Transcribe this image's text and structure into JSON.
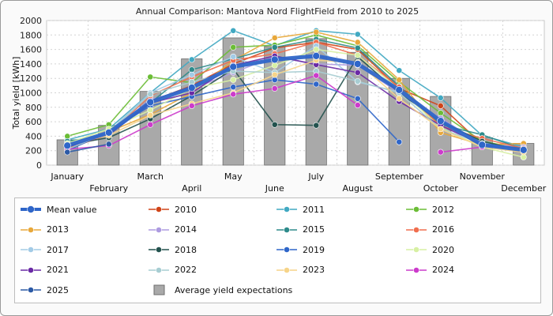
{
  "chart_data": {
    "type": "bar+line",
    "title": "Annual Comparison: Mantova Nord FlightField from 2010 to 2025",
    "ylabel": "Total yield [kWh]",
    "xlabel": "",
    "ylim": [
      0,
      2000
    ],
    "yticks": [
      0,
      200,
      400,
      600,
      800,
      1000,
      1200,
      1400,
      1600,
      1800,
      2000
    ],
    "grid": true,
    "legend_position": "bottom",
    "categories": [
      "January",
      "February",
      "March",
      "April",
      "May",
      "June",
      "July",
      "August",
      "September",
      "October",
      "November",
      "December"
    ],
    "bars": {
      "name": "Average yield expectations",
      "color": "#a9a9a9",
      "values": [
        350,
        550,
        1020,
        1470,
        1760,
        1640,
        1750,
        1560,
        1200,
        950,
        380,
        300
      ]
    },
    "series": [
      {
        "name": "Mean value",
        "color": "#2f66c9",
        "values": [
          270,
          450,
          870,
          1070,
          1360,
          1460,
          1510,
          1400,
          1040,
          610,
          280,
          210
        ]
      },
      {
        "name": "2010",
        "color": "#d04418",
        "values": [
          230,
          420,
          880,
          1100,
          1400,
          1620,
          1700,
          1600,
          1060,
          820,
          290,
          230
        ]
      },
      {
        "name": "2011",
        "color": "#41a9c2",
        "values": [
          350,
          500,
          1000,
          1460,
          1860,
          1650,
          1860,
          1810,
          1310,
          930,
          410,
          250
        ]
      },
      {
        "name": "2012",
        "color": "#6bbd36",
        "values": [
          400,
          560,
          1220,
          1140,
          1630,
          1660,
          1800,
          1650,
          1150,
          720,
          330,
          220
        ]
      },
      {
        "name": "2013",
        "color": "#e8a83b",
        "values": [
          300,
          460,
          700,
          1000,
          1450,
          1760,
          1840,
          1700,
          1180,
          450,
          280,
          300
        ]
      },
      {
        "name": "2014",
        "color": "#ad9be0",
        "values": [
          260,
          430,
          910,
          1050,
          1280,
          1500,
          1400,
          1380,
          1000,
          650,
          290,
          250
        ]
      },
      {
        "name": "2015",
        "color": "#2e8b8b",
        "values": [
          330,
          420,
          860,
          1320,
          1470,
          1630,
          1740,
          1620,
          1090,
          560,
          420,
          220
        ]
      },
      {
        "name": "2016",
        "color": "#f06e4e",
        "values": [
          260,
          430,
          960,
          1220,
          1450,
          1540,
          1700,
          1520,
          1080,
          540,
          370,
          230
        ]
      },
      {
        "name": "2017",
        "color": "#a3cbe6",
        "values": [
          300,
          460,
          1000,
          1250,
          1500,
          1280,
          1650,
          1150,
          1010,
          600,
          320,
          200
        ]
      },
      {
        "name": "2018",
        "color": "#23524e",
        "values": [
          280,
          380,
          640,
          960,
          1330,
          560,
          550,
          1500,
          1000,
          600,
          330,
          200
        ]
      },
      {
        "name": "2019",
        "color": "#2f66c9",
        "values": [
          200,
          460,
          820,
          950,
          1080,
          1180,
          1120,
          920,
          320,
          null,
          null,
          null
        ]
      },
      {
        "name": "2020",
        "color": "#d7f0a3",
        "values": [
          300,
          500,
          760,
          1060,
          1180,
          1380,
          1600,
          1520,
          1050,
          520,
          250,
          110
        ]
      },
      {
        "name": "2021",
        "color": "#6a2aa5",
        "values": [
          250,
          420,
          860,
          1000,
          1380,
          1510,
          1390,
          1280,
          880,
          550,
          280,
          210
        ]
      },
      {
        "name": "2022",
        "color": "#a7cdd2",
        "values": [
          220,
          450,
          980,
          1150,
          1300,
          1280,
          1300,
          1160,
          1000,
          500,
          300,
          200
        ]
      },
      {
        "name": "2023",
        "color": "#f6d489",
        "values": [
          280,
          410,
          690,
          850,
          1000,
          1250,
          1450,
          1420,
          920,
          500,
          250,
          180
        ]
      },
      {
        "name": "2024",
        "color": "#cc3bcb",
        "values": [
          220,
          270,
          560,
          820,
          980,
          1060,
          1240,
          830,
          null,
          180,
          250,
          null
        ]
      },
      {
        "name": "2025",
        "color": "#2c5aa6",
        "values": [
          180,
          290,
          null,
          null,
          null,
          null,
          null,
          null,
          null,
          null,
          null,
          null
        ]
      }
    ],
    "legend_items": [
      "Mean value",
      "2010",
      "2011",
      "2012",
      "2013",
      "2014",
      "2015",
      "2016",
      "2017",
      "2018",
      "2019",
      "2020",
      "2021",
      "2022",
      "2023",
      "2024",
      "2025",
      "Average yield expectations"
    ]
  }
}
